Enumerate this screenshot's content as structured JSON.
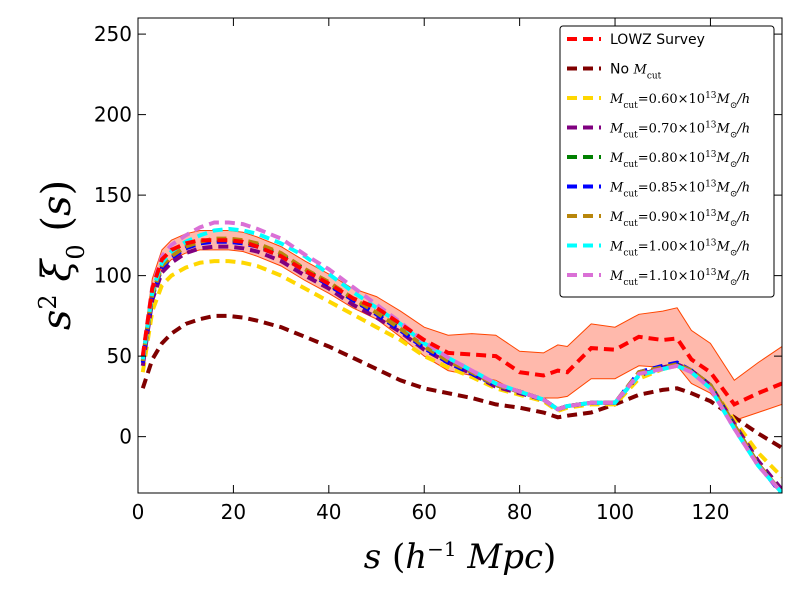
{
  "chart_data": {
    "type": "line",
    "xlabel": "s (h^-1 Mpc)",
    "ylabel": "s^2 ξ0(s)",
    "xlim": [
      0,
      135
    ],
    "ylim": [
      -35,
      260
    ],
    "xticks": [
      0,
      20,
      40,
      60,
      80,
      100,
      120
    ],
    "yticks": [
      0,
      50,
      100,
      150,
      200,
      250
    ],
    "x_tick_labels": [
      "0",
      "20",
      "40",
      "60",
      "80",
      "100",
      "120"
    ],
    "y_tick_labels": [
      "0",
      "50",
      "100",
      "150",
      "200",
      "250"
    ],
    "legend_position": "top-right",
    "x": [
      1,
      3,
      5,
      7,
      10,
      13,
      16,
      19,
      22,
      25,
      30,
      35,
      40,
      45,
      50,
      55,
      60,
      65,
      70,
      75,
      80,
      85,
      88,
      90,
      95,
      100,
      105,
      110,
      113,
      116,
      120,
      125,
      130,
      135
    ],
    "series": [
      {
        "name": "LOWZ Survey",
        "color": "#ff0000",
        "values": [
          50,
          92,
          110,
          116,
          120,
          122,
          122,
          122,
          121,
          118,
          112,
          103,
          95,
          86,
          80,
          70,
          60,
          52,
          51,
          50,
          40,
          38,
          41,
          40,
          55,
          54,
          62,
          60,
          61,
          48,
          40,
          20,
          27,
          33
        ],
        "band_lower": [
          45,
          86,
          104,
          110,
          114,
          116,
          116,
          116,
          115,
          112,
          106,
          97,
          89,
          80,
          73,
          62,
          50,
          41,
          38,
          35,
          27,
          24,
          24,
          25,
          36,
          36,
          44,
          43,
          44,
          33,
          27,
          10,
          15,
          20
        ],
        "band_upper": [
          55,
          98,
          116,
          122,
          126,
          128,
          128,
          128,
          127,
          124,
          118,
          109,
          101,
          92,
          87,
          78,
          68,
          63,
          64,
          63,
          53,
          52,
          57,
          56,
          70,
          68,
          76,
          78,
          80,
          66,
          58,
          35,
          46,
          56
        ]
      },
      {
        "name": "No M_cut",
        "color": "#800000",
        "values": [
          30,
          48,
          58,
          64,
          70,
          73,
          75,
          75,
          74,
          72,
          68,
          62,
          56,
          49,
          42,
          35,
          30,
          27,
          24,
          20,
          18,
          15,
          12,
          13,
          15,
          20,
          26,
          29,
          30,
          27,
          22,
          12,
          2,
          -7
        ]
      },
      {
        "name": "M_cut = 0.60 ×10^13 M_⊙/h",
        "color": "#ffd700",
        "values": [
          40,
          78,
          94,
          100,
          105,
          108,
          109,
          109,
          108,
          106,
          100,
          92,
          84,
          76,
          68,
          60,
          50,
          43,
          37,
          30,
          26,
          22,
          16,
          18,
          20,
          20,
          36,
          42,
          44,
          40,
          32,
          10,
          -10,
          -25
        ]
      },
      {
        "name": "M_cut = 0.70 ×10^13 M_⊙/h",
        "color": "#800080",
        "values": [
          44,
          85,
          102,
          108,
          114,
          117,
          118,
          118,
          117,
          115,
          109,
          100,
          92,
          82,
          74,
          65,
          54,
          46,
          39,
          31,
          27,
          23,
          17,
          19,
          21,
          21,
          38,
          43,
          45,
          41,
          32,
          8,
          -15,
          -33
        ]
      },
      {
        "name": "M_cut = 0.80 ×10^13 M_⊙/h",
        "color": "#008000",
        "values": [
          47,
          88,
          106,
          112,
          118,
          121,
          122,
          122,
          121,
          119,
          113,
          104,
          95,
          85,
          77,
          67,
          56,
          47,
          40,
          32,
          28,
          23,
          17,
          19,
          21,
          21,
          39,
          43,
          45,
          41,
          32,
          7,
          -17,
          -35
        ]
      },
      {
        "name": "M_cut = 0.85 ×10^13 M_⊙/h",
        "color": "#0000ff",
        "values": [
          46,
          87,
          105,
          111,
          117,
          120,
          121,
          121,
          120,
          118,
          112,
          103,
          94,
          85,
          76,
          66,
          55,
          46,
          39,
          32,
          28,
          23,
          17,
          19,
          21,
          21,
          40,
          44,
          46,
          41,
          32,
          7,
          -17,
          -36
        ]
      },
      {
        "name": "M_cut = 0.90 ×10^13 M_⊙/h",
        "color": "#b8860b",
        "values": [
          47,
          88,
          106,
          112,
          118,
          121,
          123,
          123,
          122,
          120,
          114,
          104,
          96,
          86,
          77,
          67,
          56,
          47,
          40,
          32,
          28,
          23,
          17,
          19,
          21,
          21,
          40,
          43,
          45,
          41,
          32,
          7,
          -17,
          -35
        ]
      },
      {
        "name": "M_cut = 1.00 ×10^13 M_⊙/h",
        "color": "#00ffff",
        "values": [
          48,
          90,
          108,
          115,
          121,
          125,
          128,
          129,
          128,
          126,
          120,
          112,
          101,
          90,
          80,
          70,
          58,
          49,
          41,
          33,
          28,
          23,
          17,
          19,
          21,
          21,
          38,
          42,
          44,
          40,
          30,
          5,
          -18,
          -35
        ]
      },
      {
        "name": "M_cut = 1.10 ×10^13 M_⊙/h",
        "color": "#da70d6",
        "values": [
          50,
          93,
          112,
          119,
          125,
          130,
          133,
          133,
          132,
          129,
          123,
          113,
          104,
          93,
          82,
          71,
          59,
          49,
          41,
          33,
          28,
          23,
          17,
          19,
          21,
          21,
          39,
          42,
          44,
          40,
          30,
          5,
          -18,
          -35
        ]
      }
    ]
  }
}
